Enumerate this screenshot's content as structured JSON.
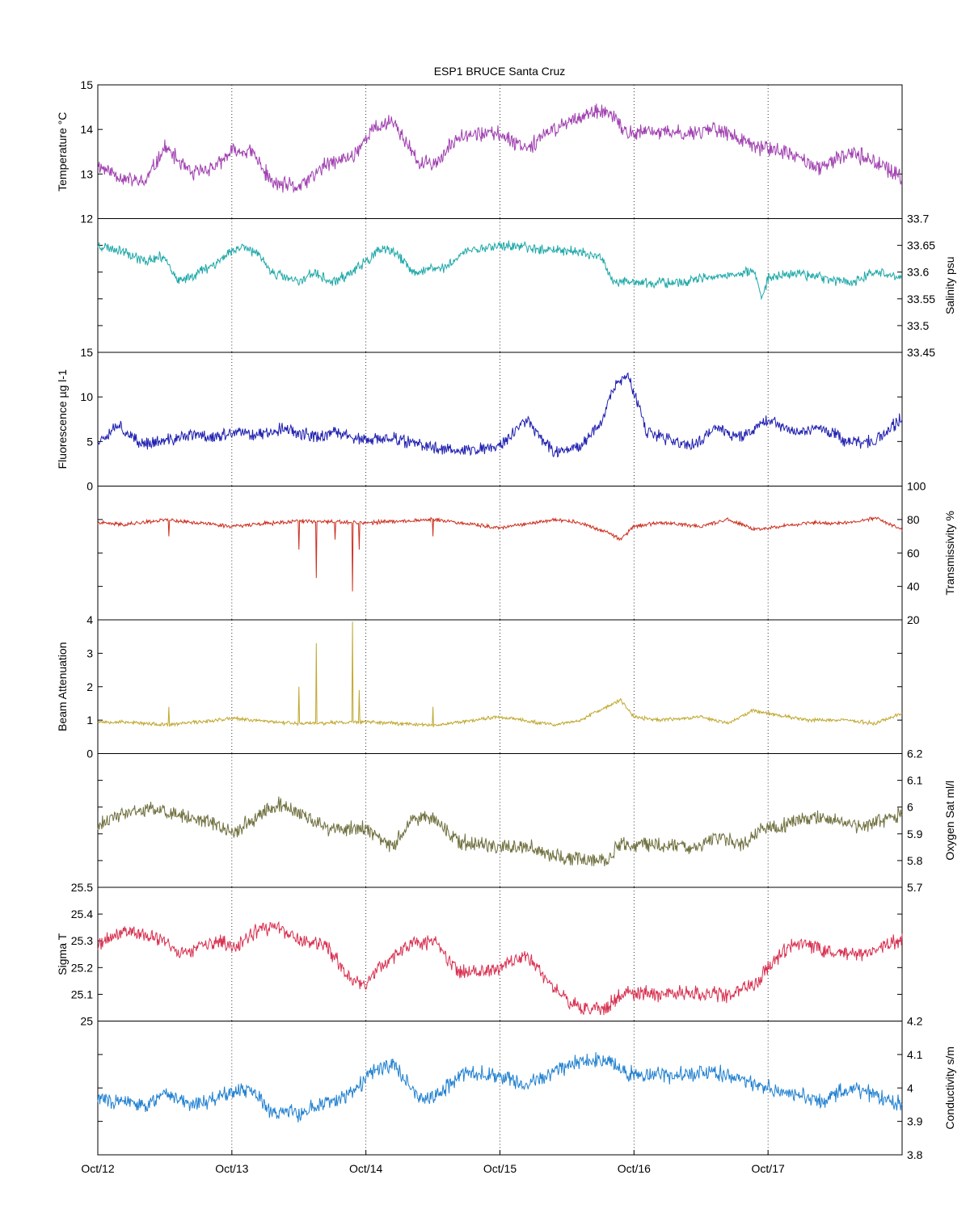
{
  "title": "ESP1 BRUCE Santa Cruz",
  "x_ticks": [
    "Oct/12",
    "Oct/13",
    "Oct/14",
    "Oct/15",
    "Oct/16",
    "Oct/17"
  ],
  "chart_data": [
    {
      "type": "line",
      "name": "temperature",
      "side": "left",
      "ylabel": "Temperature °C",
      "ylim": [
        12,
        15
      ],
      "tick_labels": [
        "12",
        "13",
        "14",
        "15"
      ],
      "minor_ticks": [],
      "color": "#a040b0",
      "seed": 11,
      "noise": 0.22,
      "x": [
        0,
        0.2,
        0.35,
        0.5,
        0.7,
        0.9,
        1.0,
        1.15,
        1.3,
        1.5,
        1.7,
        1.9,
        2.05,
        2.2,
        2.4,
        2.55,
        2.7,
        3.0,
        3.2,
        3.4,
        3.6,
        3.8,
        3.95,
        4.1,
        4.4,
        4.6,
        4.9,
        5.0,
        5.2,
        5.4,
        5.6,
        5.8,
        5.99
      ],
      "y": [
        13.2,
        12.9,
        12.8,
        13.6,
        13.0,
        13.2,
        13.5,
        13.5,
        12.8,
        12.7,
        13.2,
        13.4,
        14.0,
        14.2,
        13.2,
        13.3,
        13.9,
        13.9,
        13.6,
        14.0,
        14.3,
        14.4,
        13.9,
        13.95,
        13.9,
        14.05,
        13.6,
        13.6,
        13.4,
        13.1,
        13.5,
        13.3,
        12.9
      ]
    },
    {
      "type": "line",
      "name": "salinity",
      "side": "right",
      "ylabel": "Salinity psu",
      "ylim": [
        33.45,
        33.7
      ],
      "tick_labels": [
        "33.45",
        "33.5",
        "33.55",
        "33.6",
        "33.65",
        "33.7"
      ],
      "minor_ticks": [],
      "color": "#20a8a8",
      "seed": 23,
      "noise": 0.012,
      "x": [
        0,
        0.2,
        0.35,
        0.5,
        0.6,
        0.9,
        1.0,
        1.1,
        1.2,
        1.3,
        1.5,
        1.6,
        1.75,
        1.9,
        2.1,
        2.2,
        2.35,
        2.6,
        2.75,
        3.0,
        3.5,
        3.75,
        3.85,
        4.0,
        4.3,
        4.6,
        4.9,
        4.95,
        5.0,
        5.2,
        5.4,
        5.6,
        5.8,
        5.99
      ],
      "y": [
        33.65,
        33.64,
        33.62,
        33.63,
        33.58,
        33.62,
        33.64,
        33.65,
        33.63,
        33.6,
        33.58,
        33.6,
        33.58,
        33.6,
        33.64,
        33.64,
        33.6,
        33.61,
        33.64,
        33.65,
        33.64,
        33.63,
        33.58,
        33.58,
        33.58,
        33.59,
        33.6,
        33.55,
        33.59,
        33.6,
        33.59,
        33.58,
        33.6,
        33.59
      ]
    },
    {
      "type": "line",
      "name": "fluorescence",
      "side": "left",
      "ylabel": "Fluorescence µg l-1",
      "ylim": [
        0,
        15
      ],
      "tick_labels": [
        "0",
        "5",
        "10",
        "15"
      ],
      "minor_ticks": [],
      "color": "#2020b0",
      "seed": 37,
      "noise": 0.9,
      "x": [
        0,
        0.15,
        0.3,
        0.5,
        0.7,
        0.9,
        1.0,
        1.2,
        1.4,
        1.6,
        1.8,
        2.0,
        2.2,
        2.4,
        2.6,
        2.8,
        3.0,
        3.2,
        3.4,
        3.6,
        3.75,
        3.85,
        3.95,
        4.1,
        4.3,
        4.45,
        4.6,
        4.8,
        5.0,
        5.2,
        5.4,
        5.6,
        5.8,
        5.99
      ],
      "y": [
        5,
        7,
        4.8,
        5,
        5.8,
        5.5,
        6,
        5.8,
        6.5,
        5.5,
        6,
        5,
        5.5,
        4.5,
        4.2,
        4,
        4.5,
        7.5,
        3.8,
        4.5,
        7,
        11,
        12.5,
        6,
        5,
        4.5,
        6.5,
        5.5,
        7.5,
        6,
        6.5,
        5,
        5,
        7.5
      ]
    },
    {
      "type": "line",
      "name": "transmissivity",
      "side": "right",
      "ylabel": "Transmissivity %",
      "ylim": [
        20,
        100
      ],
      "tick_labels": [
        "20",
        "40",
        "60",
        "80",
        "100"
      ],
      "minor_ticks": [],
      "color": "#cc3020",
      "seed": 41,
      "noise": 1.4,
      "x": [
        0,
        0.2,
        0.5,
        1.0,
        1.5,
        2.0,
        2.5,
        3.0,
        3.4,
        3.6,
        3.8,
        3.9,
        4.0,
        4.2,
        4.5,
        4.7,
        4.9,
        5.0,
        5.3,
        5.6,
        5.8,
        5.99
      ],
      "y": [
        78,
        77,
        80,
        76,
        79,
        78,
        80,
        75,
        80,
        78,
        72,
        68,
        76,
        78,
        76,
        80,
        74,
        75,
        78,
        78,
        81,
        74
      ],
      "spikes": [
        [
          1.5,
          62
        ],
        [
          1.63,
          45
        ],
        [
          1.77,
          68
        ],
        [
          1.9,
          37
        ],
        [
          1.95,
          62
        ],
        [
          2.5,
          70
        ],
        [
          0.53,
          70
        ]
      ]
    },
    {
      "type": "line",
      "name": "beam_attenuation",
      "side": "left",
      "ylabel": "Beam Attenuation",
      "ylim": [
        0,
        4
      ],
      "tick_labels": [
        "0",
        "1",
        "2",
        "3",
        "4"
      ],
      "minor_ticks": [],
      "color": "#c0a830",
      "seed": 53,
      "noise": 0.07,
      "x": [
        0,
        0.2,
        0.5,
        1.0,
        1.5,
        2.0,
        2.5,
        3.0,
        3.4,
        3.6,
        3.8,
        3.9,
        4.0,
        4.2,
        4.5,
        4.7,
        4.9,
        5.0,
        5.3,
        5.6,
        5.8,
        5.99
      ],
      "y": [
        0.95,
        0.95,
        0.85,
        1.05,
        0.9,
        0.95,
        0.85,
        1.1,
        0.85,
        1.0,
        1.4,
        1.6,
        1.1,
        1.0,
        1.1,
        0.9,
        1.3,
        1.2,
        1.0,
        1.0,
        0.9,
        1.2
      ],
      "spikes": [
        [
          1.5,
          2.0
        ],
        [
          1.63,
          3.3
        ],
        [
          1.9,
          3.95
        ],
        [
          1.95,
          1.9
        ],
        [
          2.5,
          1.4
        ],
        [
          0.53,
          1.4
        ]
      ]
    },
    {
      "type": "line",
      "name": "oxygen_sat",
      "side": "right",
      "ylabel": "Oxygen Sat ml/l",
      "ylim": [
        5.7,
        6.2
      ],
      "tick_labels": [
        "5.7",
        "5.8",
        "5.9",
        "6",
        "6.1",
        "6.2"
      ],
      "minor_ticks": [],
      "color": "#707040",
      "seed": 61,
      "noise": 0.035,
      "x": [
        0,
        0.2,
        0.4,
        0.6,
        0.9,
        1.0,
        1.2,
        1.35,
        1.5,
        1.7,
        2.0,
        2.2,
        2.35,
        2.5,
        2.7,
        3.0,
        3.2,
        3.4,
        3.6,
        3.8,
        3.9,
        4.2,
        4.5,
        4.6,
        4.8,
        4.95,
        5.1,
        5.3,
        5.5,
        5.7,
        5.99
      ],
      "y": [
        5.93,
        5.98,
        5.99,
        5.97,
        5.93,
        5.9,
        5.97,
        6.01,
        5.98,
        5.92,
        5.92,
        5.85,
        5.96,
        5.96,
        5.87,
        5.85,
        5.85,
        5.82,
        5.8,
        5.8,
        5.86,
        5.86,
        5.85,
        5.89,
        5.86,
        5.92,
        5.93,
        5.96,
        5.95,
        5.93,
        5.97
      ]
    },
    {
      "type": "line",
      "name": "sigma_t",
      "side": "left",
      "ylabel": "Sigma T",
      "ylim": [
        25,
        25.5
      ],
      "tick_labels": [
        "25",
        "25.1",
        "25.2",
        "25.3",
        "25.4",
        "25.5"
      ],
      "minor_ticks": [],
      "color": "#d83050",
      "seed": 71,
      "noise": 0.035,
      "x": [
        0,
        0.2,
        0.5,
        0.6,
        0.9,
        1.0,
        1.2,
        1.35,
        1.5,
        1.7,
        1.9,
        2.0,
        2.1,
        2.3,
        2.5,
        2.7,
        3.0,
        3.2,
        3.4,
        3.6,
        3.8,
        3.9,
        4.2,
        4.5,
        4.7,
        4.9,
        5.0,
        5.2,
        5.5,
        5.7,
        5.99
      ],
      "y": [
        25.28,
        25.34,
        25.3,
        25.25,
        25.3,
        25.27,
        25.34,
        25.35,
        25.3,
        25.28,
        25.15,
        25.14,
        25.2,
        25.28,
        25.3,
        25.18,
        25.2,
        25.25,
        25.12,
        25.05,
        25.05,
        25.1,
        25.1,
        25.1,
        25.1,
        25.14,
        25.2,
        25.3,
        25.25,
        25.25,
        25.3
      ]
    },
    {
      "type": "line",
      "name": "conductivity",
      "side": "right",
      "ylabel": "Conductivity s/m",
      "ylim": [
        3.8,
        4.2
      ],
      "tick_labels": [
        "3.8",
        "3.9",
        "4",
        "4.1",
        "4.2"
      ],
      "minor_ticks": [],
      "color": "#2080d0",
      "seed": 83,
      "noise": 0.03,
      "x": [
        0,
        0.2,
        0.35,
        0.5,
        0.7,
        0.9,
        1.0,
        1.15,
        1.3,
        1.5,
        1.7,
        1.9,
        2.05,
        2.2,
        2.4,
        2.55,
        2.7,
        3.0,
        3.2,
        3.4,
        3.6,
        3.8,
        3.95,
        4.1,
        4.4,
        4.6,
        4.9,
        5.0,
        5.2,
        5.4,
        5.6,
        5.8,
        5.99
      ],
      "y": [
        3.97,
        3.96,
        3.94,
        3.99,
        3.95,
        3.97,
        3.99,
        3.99,
        3.93,
        3.92,
        3.96,
        3.98,
        4.05,
        4.07,
        3.97,
        3.98,
        4.04,
        4.04,
        4.01,
        4.05,
        4.08,
        4.09,
        4.04,
        4.04,
        4.04,
        4.05,
        4.01,
        4.0,
        3.98,
        3.96,
        4.0,
        3.98,
        3.95
      ]
    }
  ]
}
